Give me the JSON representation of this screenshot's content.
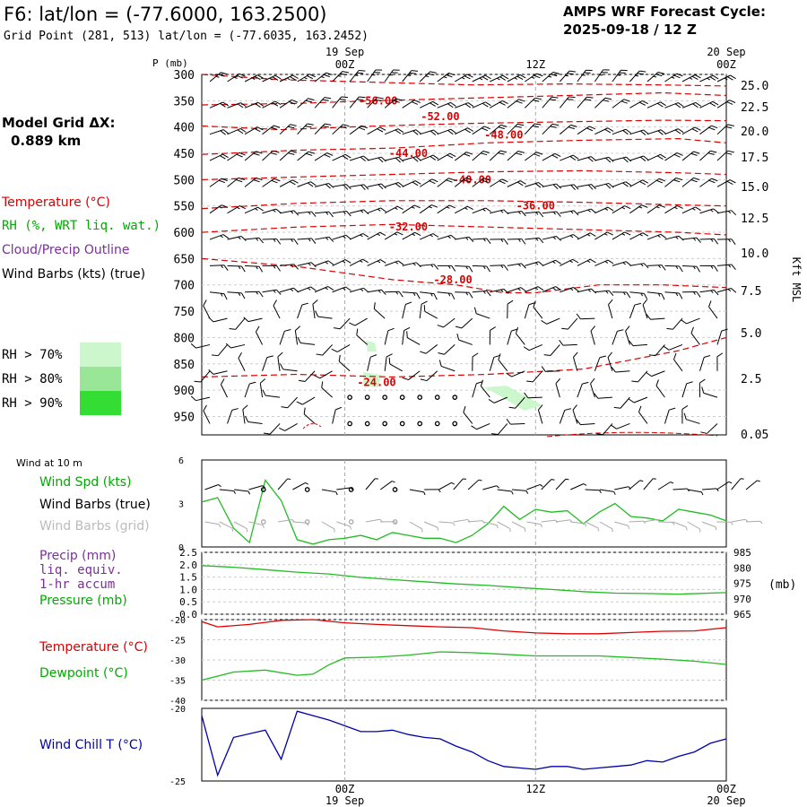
{
  "header": {
    "title": "F6:  lat/lon = (-77.6000, 163.2500)",
    "subtitle": "Grid Point (281, 513) lat/lon = (-77.6035, 163.2452)",
    "cycle_line1": "AMPS WRF Forecast Cycle:",
    "cycle_line2": "2025-09-18 / 12  Z"
  },
  "model_grid": {
    "label": "Model Grid ΔX:",
    "value": "0.889 km"
  },
  "legend": {
    "temperature": "Temperature (°C)",
    "rh": "RH (%, WRT liq. wat.)",
    "cloud": "Cloud/Precip Outline",
    "wind": "Wind Barbs (kts) (true)",
    "rh70": "RH > 70%",
    "rh80": "RH > 80%",
    "rh90": "RH > 90%",
    "wind10m": "Wind at 10 m",
    "wind_spd": "Wind Spd (kts)",
    "wind_barbs_true": "Wind Barbs (true)",
    "wind_barbs_grid": "Wind Barbs (grid)",
    "precip1": "Precip (mm)",
    "precip2": "liq. equiv.",
    "precip3": "1-hr accum",
    "pressure": "Pressure (mb)",
    "temperature2": "Temperature (°C)",
    "dewpoint": "Dewpoint (°C)",
    "windchill": "Wind Chill T (°C)"
  },
  "colors": {
    "temperature": "#dd0000",
    "rh": "#00aa00",
    "cloud": "#7a2f9a",
    "windchill": "#0000aa",
    "rh70": "#ccf7cc",
    "rh80": "#99e699",
    "rh90": "#33dd33"
  },
  "time_axis": {
    "top_labels": [
      {
        "hour": 12,
        "label": "19 Sep",
        "sub": "00Z"
      },
      {
        "hour": 24,
        "label": "",
        "sub": "12Z"
      },
      {
        "hour": 36,
        "label": "20 Sep",
        "sub": "00Z"
      }
    ],
    "bottom_labels": [
      {
        "hour": 12,
        "label": "00Z",
        "sub": "19 Sep"
      },
      {
        "hour": 24,
        "label": "12Z",
        "sub": ""
      },
      {
        "hour": 36,
        "label": "00Z",
        "sub": "20 Sep"
      }
    ],
    "range_hours": [
      3,
      36
    ]
  },
  "chart_data": [
    {
      "type": "line",
      "title": "",
      "ylabel": "P (mb)",
      "ylabel_right": "Kft MSL",
      "pressure_ticks": [
        300,
        350,
        400,
        450,
        500,
        550,
        600,
        650,
        700,
        750,
        800,
        850,
        900,
        950
      ],
      "height_ticks": [
        "25.0",
        "22.5",
        "20.0",
        "17.5",
        "15.0",
        "12.5",
        "10.0",
        "7.5",
        "5.0",
        "2.5",
        "0.05"
      ],
      "isotherm_labels": [
        {
          "label": "-56.00",
          "hour": 14.1,
          "p": 350
        },
        {
          "label": "-52.00",
          "hour": 18.0,
          "p": 380
        },
        {
          "label": "-48.00",
          "hour": 22.0,
          "p": 415
        },
        {
          "label": "-44.00",
          "hour": 16.0,
          "p": 450
        },
        {
          "label": "-40.00",
          "hour": 20.0,
          "p": 500
        },
        {
          "label": "-36.00",
          "hour": 24.0,
          "p": 550
        },
        {
          "label": "-32.00",
          "hour": 16.0,
          "p": 590
        },
        {
          "label": "-28.00",
          "hour": 18.8,
          "p": 690
        },
        {
          "label": "-24.00",
          "hour": 14.0,
          "p": 885
        }
      ],
      "series": [
        {
          "name": "-56.00",
          "values": [
            [
              3,
              300
            ],
            [
              8,
              310
            ],
            [
              14,
              315
            ],
            [
              20,
              320
            ],
            [
              26,
              318
            ],
            [
              32,
              320
            ],
            [
              36,
              322
            ]
          ]
        },
        {
          "name": "-52.00",
          "values": [
            [
              3,
              358
            ],
            [
              9,
              355
            ],
            [
              14,
              350
            ],
            [
              20,
              345
            ],
            [
              26,
              340
            ],
            [
              32,
              335
            ],
            [
              36,
              340
            ]
          ]
        },
        {
          "name": "-48.00",
          "values": [
            [
              3,
              398
            ],
            [
              8,
              405
            ],
            [
              14,
              398
            ],
            [
              20,
              393
            ],
            [
              26,
              390
            ],
            [
              32,
              387
            ],
            [
              36,
              388
            ]
          ]
        },
        {
          "name": "-44.00",
          "values": [
            [
              3,
              452
            ],
            [
              9,
              444
            ],
            [
              15,
              440
            ],
            [
              21,
              430
            ],
            [
              27,
              425
            ],
            [
              33,
              422
            ],
            [
              36,
              430
            ]
          ]
        },
        {
          "name": "-40.00",
          "values": [
            [
              3,
              500
            ],
            [
              9,
              495
            ],
            [
              15,
              490
            ],
            [
              21,
              485
            ],
            [
              27,
              483
            ],
            [
              33,
              487
            ],
            [
              36,
              490
            ]
          ]
        },
        {
          "name": "-36.00",
          "values": [
            [
              3,
              555
            ],
            [
              9,
              545
            ],
            [
              15,
              540
            ],
            [
              21,
              540
            ],
            [
              27,
              543
            ],
            [
              33,
              548
            ],
            [
              36,
              550
            ]
          ]
        },
        {
          "name": "-32.00",
          "values": [
            [
              3,
              600
            ],
            [
              9,
              590
            ],
            [
              15,
              585
            ],
            [
              21,
              590
            ],
            [
              27,
              595
            ],
            [
              33,
              600
            ],
            [
              36,
              605
            ]
          ]
        },
        {
          "name": "-28.00",
          "values": [
            [
              3,
              650
            ],
            [
              9,
              665
            ],
            [
              15,
              690
            ],
            [
              19,
              700
            ],
            [
              22,
              715
            ],
            [
              24,
              715
            ],
            [
              28,
              700
            ],
            [
              32,
              700
            ],
            [
              36,
              705
            ]
          ]
        },
        {
          "name": "-24.00",
          "values": [
            [
              3,
              875
            ],
            [
              9,
              870
            ],
            [
              15,
              875
            ],
            [
              21,
              870
            ],
            [
              27,
              860
            ],
            [
              33,
              825
            ],
            [
              36,
              800
            ]
          ]
        }
      ]
    },
    {
      "type": "line",
      "title": "",
      "ylabel": "",
      "ylim": [
        0,
        6
      ],
      "yticks": [
        "6",
        "3",
        "0"
      ],
      "series": [
        {
          "name": "Wind Spd (kts)",
          "x": [
            3,
            4,
            5,
            6,
            7,
            8,
            9,
            10,
            11,
            12,
            13,
            14,
            15,
            16,
            17,
            18,
            19,
            20,
            21,
            22,
            23,
            24,
            25,
            26,
            27,
            28,
            29,
            30,
            31,
            32,
            33,
            34,
            35,
            36
          ],
          "values": [
            3.1,
            3.4,
            1.3,
            0.3,
            4.6,
            3.2,
            0.5,
            0.2,
            0.5,
            0.6,
            0.8,
            0.5,
            1.0,
            0.8,
            0.6,
            0.6,
            0.3,
            0.8,
            1.6,
            2.8,
            1.9,
            2.6,
            2.4,
            2.5,
            1.6,
            2.4,
            3.0,
            2.1,
            2.0,
            1.8,
            2.6,
            2.4,
            2.2,
            1.8
          ]
        }
      ]
    },
    {
      "type": "line",
      "title": "",
      "yticks_left": [
        "2.5",
        "2.0",
        "1.5",
        "1.0",
        "0.5",
        "0.0"
      ],
      "yticks_right": [
        "985",
        "980",
        "975",
        "970",
        "965"
      ],
      "ylabel_right": "(mb)",
      "ylim_left": [
        0,
        2.5
      ],
      "ylim_right": [
        965,
        985
      ],
      "series": [
        {
          "name": "Pressure (mb)",
          "x": [
            3,
            5,
            7,
            9,
            11,
            13,
            15,
            17,
            19,
            21,
            23,
            25,
            27,
            29,
            31,
            33,
            36
          ],
          "values": [
            980.7,
            980.2,
            979.4,
            978.6,
            978.0,
            976.9,
            976.2,
            975.5,
            974.8,
            974.3,
            973.6,
            973.0,
            972.3,
            971.8,
            971.7,
            971.5,
            972.0
          ]
        }
      ]
    },
    {
      "type": "line",
      "title": "",
      "yticks": [
        "-20",
        "-25",
        "-30",
        "-35",
        "-40"
      ],
      "ylim": [
        -40,
        -20
      ],
      "series": [
        {
          "name": "Temperature (°C)",
          "x": [
            3,
            4,
            6,
            8,
            10,
            12,
            14,
            16,
            18,
            20,
            22,
            24,
            26,
            28,
            30,
            32,
            34,
            36
          ],
          "values": [
            -20.5,
            -21.8,
            -21.2,
            -20.2,
            -20.0,
            -20.8,
            -21.2,
            -21.5,
            -21.8,
            -22.0,
            -22.8,
            -23.3,
            -23.5,
            -23.5,
            -23.2,
            -22.9,
            -22.8,
            -22.0
          ]
        },
        {
          "name": "Dewpoint (°C)",
          "x": [
            3,
            5,
            7,
            9,
            10,
            11,
            12,
            14,
            16,
            18,
            20,
            22,
            24,
            26,
            28,
            30,
            32,
            34,
            36
          ],
          "values": [
            -35.0,
            -33.0,
            -32.5,
            -33.8,
            -33.5,
            -31.2,
            -29.5,
            -29.3,
            -28.8,
            -28.0,
            -28.2,
            -28.6,
            -29.0,
            -29.0,
            -29.0,
            -29.4,
            -29.8,
            -30.3,
            -31.1
          ]
        }
      ]
    },
    {
      "type": "line",
      "title": "",
      "yticks": [
        "-20",
        "-25"
      ],
      "ylim": [
        -25,
        -20
      ],
      "series": [
        {
          "name": "Wind Chill T (°C)",
          "x": [
            3,
            4,
            5,
            7,
            8,
            9,
            10,
            11,
            12,
            13,
            14,
            15,
            16,
            17,
            18,
            19,
            20,
            21,
            22,
            23,
            24,
            25,
            26,
            27,
            28,
            29,
            30,
            31,
            32,
            33,
            34,
            35,
            36
          ],
          "values": [
            -20.5,
            -24.6,
            -22.0,
            -21.5,
            -23.5,
            -20.2,
            -20.5,
            -20.8,
            -21.2,
            -21.6,
            -21.6,
            -21.5,
            -21.8,
            -22.0,
            -22.1,
            -22.6,
            -23.0,
            -23.6,
            -24.0,
            -24.1,
            -24.2,
            -24.0,
            -24.0,
            -24.2,
            -24.1,
            -24.0,
            -23.9,
            -23.6,
            -23.7,
            -23.3,
            -23.0,
            -22.4,
            -22.1
          ]
        }
      ]
    }
  ]
}
